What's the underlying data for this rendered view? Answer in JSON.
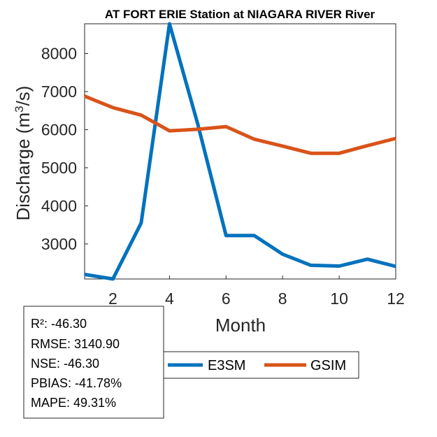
{
  "chart_data": {
    "type": "line",
    "title": "AT FORT ERIE  Station at  NIAGARA RIVER  River",
    "xlabel": "Month",
    "ylabel_main": "Discharge (m",
    "ylabel_sup": "3",
    "ylabel_end": "/s)",
    "xlim": [
      1,
      12
    ],
    "ylim": [
      2080,
      8780
    ],
    "xticks": [
      2,
      4,
      6,
      8,
      10,
      12
    ],
    "yticks": [
      3000,
      4000,
      5000,
      6000,
      7000,
      8000
    ],
    "x": [
      1,
      2,
      3,
      4,
      5,
      6,
      7,
      8,
      9,
      10,
      11,
      12
    ],
    "series": [
      {
        "name": "E3SM",
        "color": "#0072bd",
        "values": [
          2200,
          2080,
          3550,
          8780,
          6150,
          3220,
          3220,
          2730,
          2440,
          2420,
          2600,
          2410
        ]
      },
      {
        "name": "GSIM",
        "color": "#d95319",
        "values": [
          6880,
          6580,
          6380,
          5970,
          6010,
          6080,
          5750,
          5570,
          5380,
          5380,
          5580,
          5770
        ]
      }
    ],
    "legend": [
      "E3SM",
      "GSIM"
    ],
    "stats": [
      "R²: -46.30",
      "RMSE: 3140.90",
      "NSE: -46.30",
      "PBIAS: -41.78%",
      "MAPE: 49.31%"
    ]
  }
}
